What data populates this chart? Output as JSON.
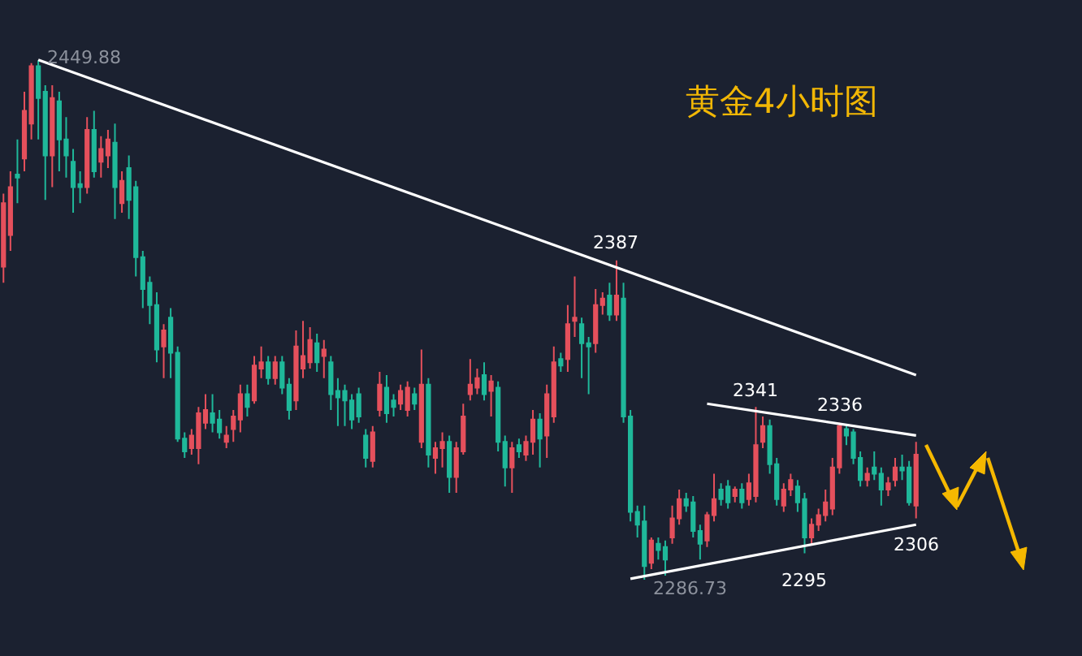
{
  "chart_data": {
    "type": "candlestick",
    "title": "黄金4小时图",
    "tick_labels": false,
    "categories": [
      null,
      null,
      null,
      null,
      null,
      null,
      null,
      null,
      null,
      null,
      null,
      null,
      null,
      null,
      null,
      null,
      null,
      null,
      null,
      null,
      null,
      null,
      null,
      null,
      null,
      null,
      null,
      null,
      null,
      null,
      null,
      null,
      null,
      null,
      null,
      null,
      null,
      null,
      null,
      null,
      null,
      null,
      null,
      null,
      null,
      null,
      null,
      null,
      null,
      null,
      null,
      null,
      null,
      null,
      null,
      null,
      null,
      null,
      null,
      null,
      null,
      null,
      null,
      null,
      null,
      null,
      null,
      null,
      null,
      null,
      null,
      null,
      null,
      null,
      null,
      null,
      null,
      null,
      null,
      null,
      null,
      null,
      null,
      null,
      null,
      null,
      null,
      null,
      null,
      null,
      null,
      null,
      null,
      null,
      null,
      null,
      null,
      null,
      null,
      null,
      null,
      null,
      null,
      null,
      null,
      null,
      null,
      null,
      null,
      null,
      null,
      null,
      null,
      null,
      null,
      null,
      null,
      null,
      null,
      null,
      null,
      null,
      null,
      null,
      null,
      null,
      null,
      null,
      null,
      null,
      null,
      null
    ],
    "ohlc": [
      [
        2385,
        2408,
        2380,
        2405
      ],
      [
        2395,
        2415,
        2390,
        2410
      ],
      [
        2414,
        2425,
        2405,
        2413
      ],
      [
        2419,
        2440,
        2415,
        2434
      ],
      [
        2430,
        2449,
        2425,
        2448
      ],
      [
        2448,
        2449.88,
        2425,
        2438
      ],
      [
        2440,
        2442,
        2406,
        2420
      ],
      [
        2420,
        2442,
        2410,
        2438
      ],
      [
        2437,
        2440,
        2415,
        2425
      ],
      [
        2425,
        2432,
        2413,
        2420
      ],
      [
        2418,
        2422,
        2402,
        2410
      ],
      [
        2411,
        2415,
        2405,
        2410
      ],
      [
        2410,
        2432,
        2408,
        2428
      ],
      [
        2428,
        2434,
        2413,
        2415
      ],
      [
        2418,
        2426,
        2413,
        2422
      ],
      [
        2420,
        2428,
        2416,
        2425
      ],
      [
        2424,
        2430,
        2400,
        2410
      ],
      [
        2405,
        2415,
        2402,
        2412
      ],
      [
        2416,
        2420,
        2400,
        2406
      ],
      [
        2410,
        2412,
        2382,
        2388
      ],
      [
        2388,
        2390,
        2372,
        2378
      ],
      [
        2380,
        2382,
        2367,
        2373
      ],
      [
        2373,
        2377,
        2355,
        2359
      ],
      [
        2360,
        2367,
        2350,
        2365
      ],
      [
        2369,
        2372,
        2350,
        2358
      ],
      [
        2358,
        2360,
        2330,
        2331
      ],
      [
        2331,
        2333,
        2325,
        2327
      ],
      [
        2328,
        2334,
        2326,
        2332
      ],
      [
        2328,
        2341,
        2323,
        2339
      ],
      [
        2336,
        2345,
        2334,
        2340
      ],
      [
        2339,
        2345,
        2333,
        2336
      ],
      [
        2337,
        2340,
        2331,
        2333
      ],
      [
        2330,
        2335,
        2328,
        2332
      ],
      [
        2334,
        2340,
        2330,
        2338
      ],
      [
        2337,
        2348,
        2333,
        2345
      ],
      [
        2345,
        2348,
        2338,
        2341
      ],
      [
        2343,
        2357,
        2342,
        2354
      ],
      [
        2353,
        2360,
        2350,
        2355
      ],
      [
        2355,
        2357,
        2348,
        2350
      ],
      [
        2350,
        2357,
        2348,
        2355
      ],
      [
        2355,
        2357,
        2345,
        2347
      ],
      [
        2348,
        2350,
        2337,
        2340
      ],
      [
        2343,
        2365,
        2340,
        2360
      ],
      [
        2353,
        2368,
        2350,
        2357
      ],
      [
        2355,
        2366,
        2353,
        2362
      ],
      [
        2361,
        2364,
        2352,
        2355
      ],
      [
        2357,
        2362,
        2350,
        2359
      ],
      [
        2355,
        2357,
        2340,
        2345
      ],
      [
        2346,
        2350,
        2335,
        2344
      ],
      [
        2346,
        2348,
        2335,
        2343
      ],
      [
        2343,
        2345,
        2334,
        2337
      ],
      [
        2345,
        2347,
        2336,
        2338
      ],
      [
        2332,
        2334,
        2322,
        2325
      ],
      [
        2324,
        2335,
        2322,
        2333
      ],
      [
        2340,
        2352,
        2338,
        2348
      ],
      [
        2347,
        2351,
        2336,
        2339
      ],
      [
        2343,
        2345,
        2338,
        2341
      ],
      [
        2342,
        2348,
        2340,
        2346
      ],
      [
        2340,
        2349,
        2338,
        2347
      ],
      [
        2345,
        2347,
        2340,
        2342
      ],
      [
        2330,
        2359,
        2328,
        2348
      ],
      [
        2348,
        2350,
        2322,
        2326
      ],
      [
        2325,
        2330,
        2320,
        2328
      ],
      [
        2328,
        2333,
        2322,
        2330
      ],
      [
        2330,
        2332,
        2314,
        2319
      ],
      [
        2319,
        2330,
        2314,
        2328
      ],
      [
        2327,
        2342,
        2326,
        2338
      ],
      [
        2345,
        2356,
        2343,
        2348
      ],
      [
        2347,
        2353,
        2345,
        2350
      ],
      [
        2351,
        2355,
        2343,
        2345
      ],
      [
        2346,
        2351,
        2338,
        2349
      ],
      [
        2347,
        2349,
        2327,
        2330
      ],
      [
        2330,
        2332,
        2316,
        2322
      ],
      [
        2322,
        2330,
        2314,
        2328
      ],
      [
        2329,
        2331,
        2325,
        2327
      ],
      [
        2326,
        2332,
        2324,
        2330
      ],
      [
        2330,
        2340,
        2326,
        2337
      ],
      [
        2337,
        2339,
        2322,
        2331
      ],
      [
        2332,
        2348,
        2325,
        2345
      ],
      [
        2338,
        2360,
        2336,
        2355
      ],
      [
        2356,
        2358,
        2352,
        2354
      ],
      [
        2356,
        2373,
        2352,
        2367
      ],
      [
        2368,
        2382,
        2363,
        2369
      ],
      [
        2367,
        2369,
        2350,
        2361
      ],
      [
        2361,
        2363,
        2345,
        2360
      ],
      [
        2361,
        2378,
        2358,
        2373
      ],
      [
        2373,
        2377,
        2370,
        2375
      ],
      [
        2376,
        2380,
        2368,
        2370
      ],
      [
        2370,
        2387,
        2368,
        2376
      ],
      [
        2375,
        2380,
        2336,
        2338
      ],
      [
        2338,
        2340,
        2305,
        2308
      ],
      [
        2308,
        2310,
        2300,
        2304
      ],
      [
        2305,
        2310,
        2286.73,
        2291
      ],
      [
        2292,
        2300,
        2290,
        2299
      ],
      [
        2298,
        2300,
        2293,
        2296
      ],
      [
        2297,
        2299,
        2288,
        2293
      ],
      [
        2300,
        2310,
        2298,
        2306
      ],
      [
        2306,
        2315,
        2304,
        2312
      ],
      [
        2312,
        2314,
        2308,
        2310
      ],
      [
        2311,
        2313,
        2300,
        2302
      ],
      [
        2302,
        2304,
        2293,
        2298
      ],
      [
        2299,
        2308,
        2297,
        2307
      ],
      [
        2307,
        2320,
        2305,
        2312
      ],
      [
        2315,
        2317,
        2310,
        2312
      ],
      [
        2316,
        2318,
        2309,
        2311
      ],
      [
        2313,
        2316,
        2311,
        2315
      ],
      [
        2315,
        2317,
        2309,
        2311
      ],
      [
        2312,
        2320,
        2310,
        2317
      ],
      [
        2313,
        2341,
        2311,
        2329
      ],
      [
        2330,
        2338,
        2328,
        2335
      ],
      [
        2335,
        2337,
        2320,
        2323
      ],
      [
        2323,
        2325,
        2310,
        2312
      ],
      [
        2310,
        2317,
        2308,
        2315
      ],
      [
        2315,
        2320,
        2313,
        2318
      ],
      [
        2316,
        2318,
        2308,
        2311
      ],
      [
        2312,
        2314,
        2295,
        2300
      ],
      [
        2300,
        2306,
        2298,
        2304
      ],
      [
        2304,
        2309,
        2302,
        2307
      ],
      [
        2307,
        2315,
        2305,
        2311
      ],
      [
        2309,
        2325,
        2307,
        2322
      ],
      [
        2322,
        2336,
        2320,
        2335
      ],
      [
        2334,
        2335,
        2329,
        2332
      ],
      [
        2333,
        2334,
        2323,
        2325
      ],
      [
        2325,
        2327,
        2316,
        2318
      ],
      [
        2318,
        2322,
        2316,
        2320
      ],
      [
        2322,
        2327,
        2318,
        2320
      ],
      [
        2320,
        2322,
        2310,
        2315
      ],
      [
        2315,
        2319,
        2313,
        2317
      ],
      [
        2318,
        2325,
        2316,
        2322
      ],
      [
        2322,
        2326,
        2318,
        2321
      ],
      [
        2322,
        2324,
        2310,
        2311
      ],
      [
        2310,
        2330,
        2306,
        2326
      ]
    ],
    "series": [
      {
        "type": "line",
        "color": "#ffffff",
        "values": [
          null,
          null,
          null,
          null,
          null,
          2450,
          null,
          null,
          null,
          null,
          null,
          null,
          null,
          null,
          null,
          null,
          null,
          null,
          null,
          null,
          null,
          null,
          null,
          null,
          null,
          null,
          null,
          null,
          null,
          null,
          null,
          null,
          null,
          null,
          null,
          null,
          null,
          null,
          null,
          null,
          null,
          null,
          null,
          null,
          null,
          null,
          null,
          null,
          null,
          null,
          null,
          null,
          null,
          null,
          null,
          null,
          null,
          null,
          null,
          null,
          null,
          null,
          null,
          null,
          null,
          null,
          null,
          null,
          null,
          null,
          null,
          null,
          null,
          null,
          null,
          null,
          null,
          null,
          null,
          null,
          null,
          null,
          null,
          null,
          null,
          null,
          null,
          null,
          null,
          null,
          null,
          null,
          null,
          null,
          null,
          null,
          null,
          null,
          null,
          null,
          null,
          null,
          null,
          null,
          null,
          null,
          null,
          null,
          null,
          null,
          null,
          null,
          null,
          null,
          null,
          null,
          null,
          null,
          null,
          null,
          null,
          null,
          null,
          null,
          null,
          null,
          null,
          null,
          null,
          null,
          null,
          2351
        ]
      },
      {
        "type": "line",
        "color": "#ffffff",
        "values": [
          null,
          null,
          null,
          null,
          null,
          null,
          null,
          null,
          null,
          null,
          null,
          null,
          null,
          null,
          null,
          null,
          null,
          null,
          null,
          null,
          null,
          null,
          null,
          null,
          null,
          null,
          null,
          null,
          null,
          null,
          null,
          null,
          null,
          null,
          null,
          null,
          null,
          null,
          null,
          null,
          null,
          null,
          null,
          null,
          null,
          null,
          null,
          null,
          null,
          null,
          null,
          null,
          null,
          null,
          null,
          null,
          null,
          null,
          null,
          null,
          null,
          null,
          null,
          null,
          null,
          null,
          null,
          null,
          null,
          null,
          null,
          null,
          null,
          null,
          null,
          null,
          null,
          null,
          null,
          null,
          null,
          null,
          null,
          null,
          null,
          null,
          null,
          null,
          null,
          null,
          null,
          null,
          null,
          null,
          null,
          null,
          null,
          null,
          null,
          null,
          null,
          2342,
          null,
          null,
          null,
          null,
          null,
          null,
          null,
          null,
          null,
          null,
          null,
          null,
          null,
          null,
          null,
          null,
          null,
          null,
          null,
          null,
          null,
          null,
          null,
          null,
          null,
          null,
          null,
          null,
          null,
          2332
        ]
      },
      {
        "type": "line",
        "color": "#ffffff",
        "values": [
          null,
          null,
          null,
          null,
          null,
          null,
          null,
          null,
          null,
          null,
          null,
          null,
          null,
          null,
          null,
          null,
          null,
          null,
          null,
          null,
          null,
          null,
          null,
          null,
          null,
          null,
          null,
          null,
          null,
          null,
          null,
          null,
          null,
          null,
          null,
          null,
          null,
          null,
          null,
          null,
          null,
          null,
          null,
          null,
          null,
          null,
          null,
          null,
          null,
          null,
          null,
          null,
          null,
          null,
          null,
          null,
          null,
          null,
          null,
          null,
          null,
          null,
          null,
          null,
          null,
          null,
          null,
          null,
          null,
          null,
          null,
          null,
          null,
          null,
          null,
          null,
          null,
          null,
          null,
          null,
          null,
          null,
          null,
          null,
          null,
          null,
          null,
          null,
          null,
          null,
          2287,
          null,
          null,
          null,
          null,
          null,
          null,
          null,
          null,
          null,
          null,
          null,
          null,
          null,
          null,
          null,
          null,
          null,
          null,
          null,
          null,
          null,
          null,
          null,
          null,
          null,
          null,
          null,
          null,
          null,
          null,
          null,
          null,
          null,
          null,
          null,
          null,
          null,
          null,
          null,
          null,
          2304
        ]
      }
    ],
    "annotations": [
      "2449.88",
      {
        "text": "2387",
        "y": 2387
      },
      {
        "text": "2341",
        "y": 2341
      },
      {
        "text": "2336",
        "y": 2336
      },
      {
        "text": "2295",
        "y": 2295
      },
      {
        "text": "2306",
        "y": 2306
      },
      "2286.73"
    ]
  }
}
